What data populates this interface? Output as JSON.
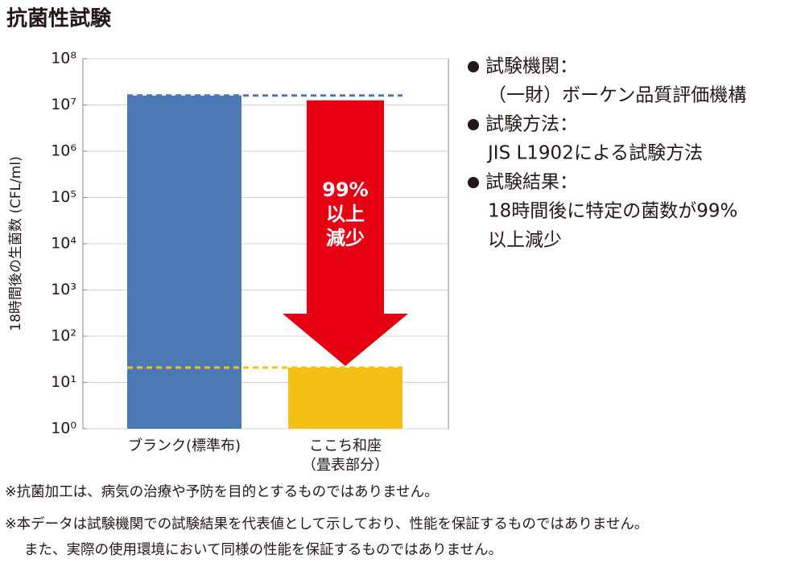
{
  "chart_data": {
    "type": "bar",
    "title": "抗菌性試験",
    "y_label": "18時間後の生菌数 (CFL/ml)",
    "categories": [
      [
        "ブランク(標準布)"
      ],
      [
        "ここち和座",
        "（畳表部分）"
      ]
    ],
    "values": [
      16000000,
      21
    ],
    "colors": [
      "#4a79b4",
      "#f5c016"
    ],
    "log_scale": true,
    "ylim": [
      1,
      100000000
    ],
    "yticks": [
      {
        "value": 1,
        "label": "10⁰"
      },
      {
        "value": 10,
        "label": "10¹"
      },
      {
        "value": 100,
        "label": "10²"
      },
      {
        "value": 1000,
        "label": "10³"
      },
      {
        "value": 10000,
        "label": "10⁴"
      },
      {
        "value": 100000,
        "label": "10⁵"
      },
      {
        "value": 1000000,
        "label": "10⁶"
      },
      {
        "value": 10000000,
        "label": "10⁷"
      },
      {
        "value": 100000000,
        "label": "10⁸"
      }
    ],
    "grid": true,
    "annotation": [
      "99%",
      "以上",
      "減少"
    ],
    "annotation_color": "#e60012"
  },
  "notes": [
    {
      "label": "試験機関：",
      "value": [
        "（一財）ボーケン品質評価機構"
      ]
    },
    {
      "label": "試験方法：",
      "value": [
        "JIS L1902による試験方法"
      ]
    },
    {
      "label": "試験結果：",
      "value": [
        "18時間後に特定の菌数が99%",
        "以上減少"
      ]
    }
  ],
  "footnotes": [
    "※抗菌加工は、病気の治療や予防を目的とするものではありません。",
    "※本データは試験機関での試験結果を代表値として示しており、性能を保証するものではありません。",
    "また、実際の使用環境において同様の性能を保証するものではありません。"
  ]
}
